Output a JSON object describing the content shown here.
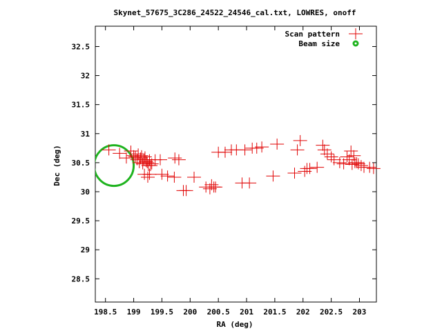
{
  "chart_data": {
    "type": "scatter",
    "title": "Skynet_57675_3C286_24522_24546_cal.txt, LOWRES, onoff",
    "xlabel": "RA (deg)",
    "ylabel": "Dec (deg)",
    "xlim": [
      198.32,
      203.3
    ],
    "ylim": [
      28.1,
      32.85
    ],
    "xticks": [
      198.5,
      199,
      199.5,
      200,
      200.5,
      201,
      201.5,
      202,
      202.5,
      203
    ],
    "xtick_labels": [
      "198.5",
      "199",
      "199.5",
      "200",
      "200.5",
      "201",
      "201.5",
      "202",
      "202.5",
      "203"
    ],
    "yticks": [
      28.5,
      29,
      29.5,
      30,
      30.5,
      31,
      31.5,
      32,
      32.5
    ],
    "ytick_labels": [
      "28.5",
      "29",
      "29.5",
      "30",
      "30.5",
      "31",
      "31.5",
      "32",
      "32.5"
    ],
    "legend_position": "top-right",
    "grid": false,
    "series": [
      {
        "name": "Scan pattern",
        "marker": "plus",
        "color": "#e00000",
        "x": [
          198.56,
          198.75,
          198.87,
          198.95,
          199.0,
          199.03,
          199.06,
          199.08,
          199.1,
          199.12,
          199.14,
          199.16,
          199.18,
          199.2,
          199.22,
          199.24,
          199.26,
          199.28,
          199.3,
          199.32,
          199.19,
          199.25,
          199.28,
          199.38,
          199.47,
          199.5,
          199.6,
          199.72,
          199.73,
          199.8,
          199.88,
          199.93,
          200.07,
          200.28,
          200.35,
          200.38,
          200.42,
          200.45,
          200.5,
          200.62,
          200.73,
          200.82,
          200.92,
          200.97,
          201.05,
          201.1,
          201.18,
          201.27,
          201.47,
          201.54,
          201.85,
          201.9,
          201.95,
          202.03,
          202.07,
          202.12,
          202.25,
          202.35,
          202.38,
          202.43,
          202.5,
          202.55,
          202.65,
          202.72,
          202.78,
          202.82,
          202.85,
          202.87,
          202.9,
          202.92,
          202.95,
          202.98,
          203.03,
          203.08,
          203.18,
          203.25
        ],
        "y": [
          30.72,
          30.66,
          30.58,
          30.7,
          30.62,
          30.6,
          30.55,
          30.65,
          30.5,
          30.58,
          30.62,
          30.48,
          30.55,
          30.6,
          30.52,
          30.5,
          30.45,
          30.55,
          30.45,
          30.48,
          30.3,
          30.25,
          30.3,
          30.55,
          30.55,
          30.3,
          30.27,
          30.25,
          30.58,
          30.55,
          30.02,
          30.02,
          30.25,
          30.08,
          30.05,
          30.12,
          30.08,
          30.08,
          30.68,
          30.68,
          30.72,
          30.72,
          30.15,
          30.72,
          30.15,
          30.75,
          30.75,
          30.77,
          30.27,
          30.82,
          30.32,
          30.72,
          30.88,
          30.35,
          30.4,
          30.4,
          30.42,
          30.8,
          30.72,
          30.65,
          30.6,
          30.55,
          30.5,
          30.48,
          30.6,
          30.55,
          30.7,
          30.47,
          30.62,
          30.5,
          30.5,
          30.48,
          30.45,
          30.42,
          30.42,
          30.4
        ]
      },
      {
        "name": "Beam size",
        "marker": "circle",
        "color": "#1fb31f",
        "center": [
          198.65,
          30.45
        ],
        "radius_deg": 0.35
      }
    ]
  }
}
